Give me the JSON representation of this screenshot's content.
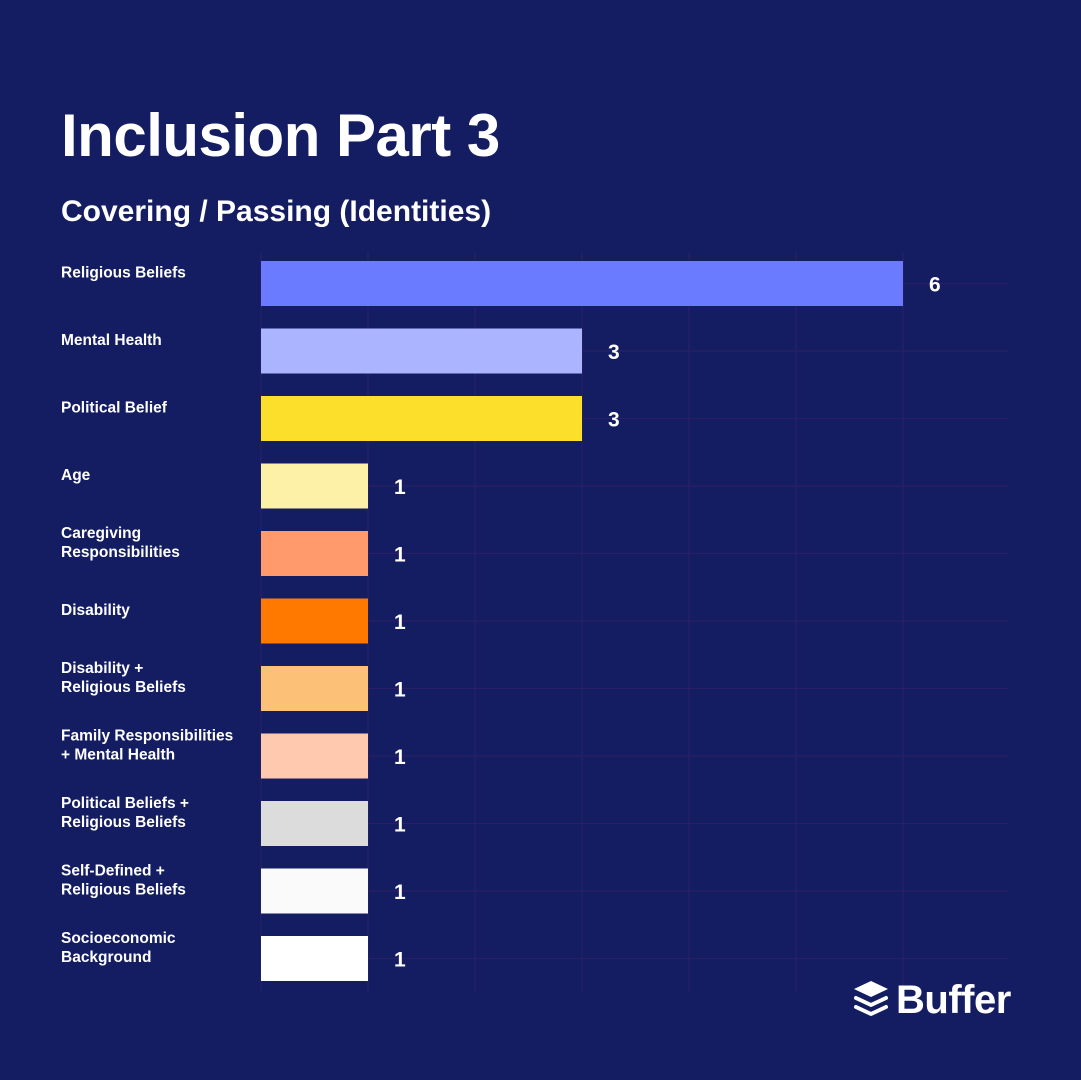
{
  "title": "Inclusion Part 3",
  "subtitle": "Covering / Passing (Identities)",
  "brand": "Buffer",
  "colors": {
    "background": "#141d62",
    "grid": "#2a1f66",
    "text": "#ffffff"
  },
  "chart_data": {
    "type": "bar",
    "orientation": "horizontal",
    "title": "Inclusion Part 3",
    "subtitle": "Covering / Passing (Identities)",
    "xlabel": "",
    "ylabel": "",
    "xlim": [
      0,
      7
    ],
    "grid": true,
    "categories": [
      [
        "Religious Beliefs"
      ],
      [
        "Mental Health"
      ],
      [
        "Political Belief"
      ],
      [
        "Age"
      ],
      [
        "Caregiving",
        "Responsibilities"
      ],
      [
        "Disability"
      ],
      [
        "Disability +",
        "Religious Beliefs"
      ],
      [
        "Family Responsibilities",
        "+ Mental Health"
      ],
      [
        "Political Beliefs +",
        "Religious Beliefs"
      ],
      [
        "Self-Defined +",
        "Religious Beliefs"
      ],
      [
        "Socioeconomic",
        "Background"
      ]
    ],
    "values": [
      6,
      3,
      3,
      1,
      1,
      1,
      1,
      1,
      1,
      1,
      1
    ],
    "bar_colors": [
      "#6b7bff",
      "#aab4ff",
      "#fbdf2a",
      "#fcf1a7",
      "#ff9a6c",
      "#ff7800",
      "#fdc077",
      "#ffc9b0",
      "#dcdcdc",
      "#fafafa",
      "#ffffff"
    ]
  }
}
